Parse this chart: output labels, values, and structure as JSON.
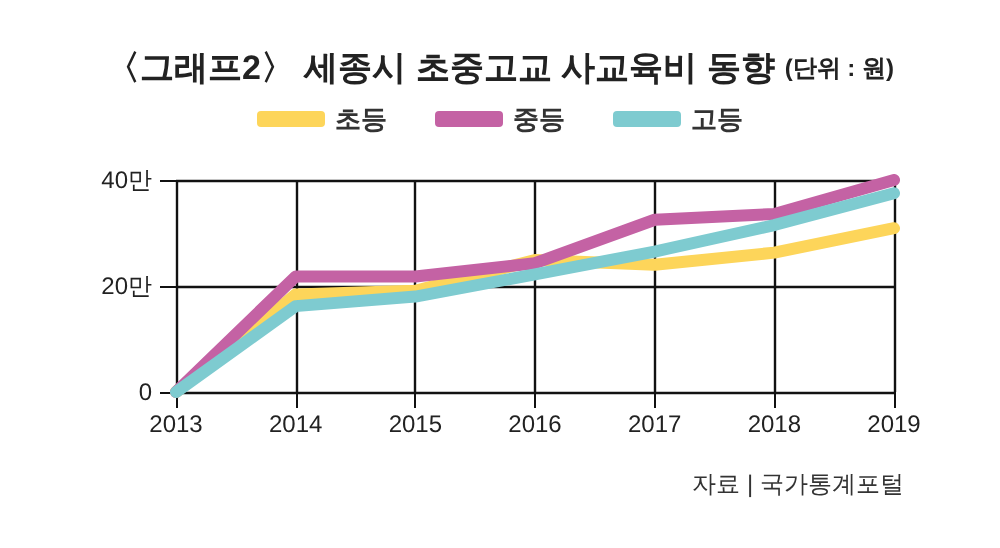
{
  "chart_data": {
    "type": "line",
    "title": "〈그래프2〉 세종시 초중고교 사교육비 동향",
    "subtitle": "(단위 : 원)",
    "categories": [
      "2013",
      "2014",
      "2015",
      "2016",
      "2017",
      "2018",
      "2019"
    ],
    "series": [
      {
        "name": "초등",
        "color": "#fdd55a",
        "values": [
          0,
          18.4,
          19.1,
          24.9,
          24.0,
          26.3,
          30.9
        ]
      },
      {
        "name": "중등",
        "color": "#c462a4",
        "values": [
          0,
          21.8,
          21.8,
          24.3,
          32.5,
          33.6,
          40.0
        ]
      },
      {
        "name": "고등",
        "color": "#7ecbd0",
        "values": [
          0,
          16.2,
          18.0,
          22.2,
          26.5,
          31.5,
          37.5
        ]
      }
    ],
    "ylim": [
      0,
      40
    ],
    "yticks": [
      0,
      {
        "value": 20,
        "label": "20만"
      },
      {
        "value": 40,
        "label": "40만"
      }
    ],
    "grid": true,
    "legend": "top",
    "marker": "none",
    "line_style": "solid",
    "annotations": [
      "자료 | 국가통계포털"
    ]
  }
}
